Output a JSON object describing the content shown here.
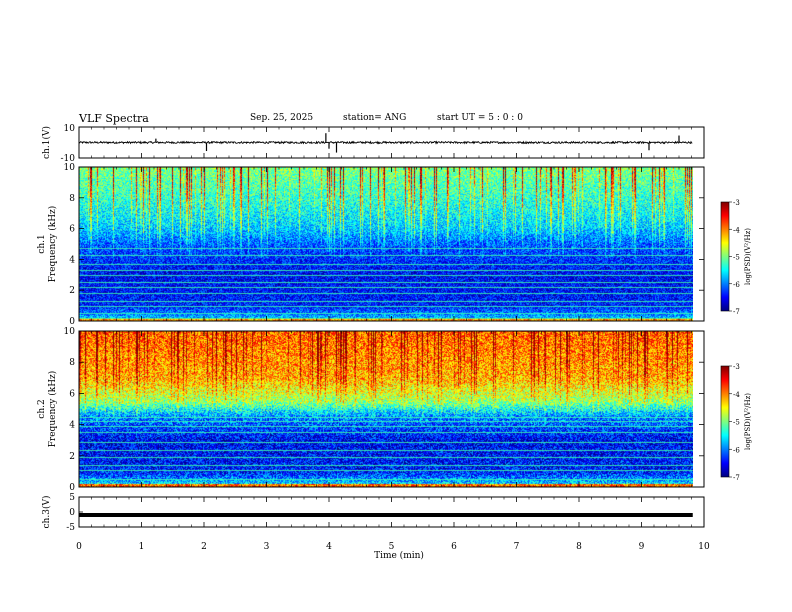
{
  "header": {
    "title": "VLF Spectra",
    "date": "Sep. 25, 2025",
    "station": "station= ANG",
    "start_ut": "start  UT =   5 : 0  : 0"
  },
  "chart_data": [
    {
      "type": "line",
      "name": "ch1-waveform",
      "ylabel": "ch.1(V)",
      "ylim": [
        -10,
        10
      ],
      "yticks": [
        "10",
        "-10"
      ],
      "baseline": 0,
      "spikes": [
        {
          "t": 1.23,
          "v": 2.5
        },
        {
          "t": 2.04,
          "v": -5.5
        },
        {
          "t": 3.95,
          "v": 6.0
        },
        {
          "t": 4.0,
          "v": -4.0
        },
        {
          "t": 4.12,
          "v": -6.5
        },
        {
          "t": 9.12,
          "v": -5.0
        },
        {
          "t": 9.6,
          "v": 4.5
        }
      ]
    },
    {
      "type": "heatmap",
      "name": "ch1-spectrogram",
      "ylabel": "ch.1\nFrequency (kHz)",
      "ylabel_line1": "ch.1",
      "ylabel_line2": "Frequency  (kHz)",
      "ylim": [
        0,
        10
      ],
      "yticks": [
        "0",
        "2",
        "4",
        "6",
        "8",
        "10"
      ],
      "power_profile": [
        {
          "f": 0,
          "p": -5.6
        },
        {
          "f": 1,
          "p": -6.4
        },
        {
          "f": 3,
          "p": -6.5
        },
        {
          "f": 4.8,
          "p": -6.2
        },
        {
          "f": 6,
          "p": -5.7
        },
        {
          "f": 8,
          "p": -5.3
        },
        {
          "f": 10,
          "p": -5.0
        }
      ],
      "noise_lines_khz": [
        0.2,
        0.5,
        1.0,
        1.3,
        1.8,
        2.2,
        2.55,
        3.0,
        3.3,
        3.7,
        4.3,
        4.75
      ],
      "colorbar": {
        "label": "log(PSD)(V²/Hz)",
        "range": [
          -7,
          -3
        ],
        "ticks": [
          "-3",
          "-4",
          "-5",
          "-6",
          "-7"
        ]
      }
    },
    {
      "type": "heatmap",
      "name": "ch2-spectrogram",
      "ylabel": "ch.2\nFrequency (kHz)",
      "ylabel_line1": "ch.2",
      "ylabel_line2": "Frequency  (kHz)",
      "ylim": [
        0,
        10
      ],
      "yticks": [
        "0",
        "2",
        "4",
        "6",
        "8",
        "10"
      ],
      "power_profile": [
        {
          "f": 0,
          "p": -5.4
        },
        {
          "f": 1,
          "p": -6.4
        },
        {
          "f": 3,
          "p": -6.5
        },
        {
          "f": 4.5,
          "p": -6.0
        },
        {
          "f": 5.5,
          "p": -4.9
        },
        {
          "f": 7,
          "p": -4.2
        },
        {
          "f": 10,
          "p": -3.9
        }
      ],
      "noise_lines_khz": [
        0.5,
        1.1,
        1.4,
        1.9,
        2.4,
        2.9,
        3.5,
        3.9,
        4.2,
        4.5
      ],
      "colorbar": {
        "label": "log(PSD)(V²/Hz)",
        "range": [
          -7,
          -3
        ],
        "ticks": [
          "-3",
          "-4",
          "-5",
          "-6",
          "-7"
        ]
      }
    },
    {
      "type": "line",
      "name": "ch3-waveform",
      "ylabel": "ch.3(V)",
      "ylim": [
        -5,
        5
      ],
      "yticks": [
        "5",
        "0",
        "-5"
      ],
      "value": -1
    }
  ],
  "xaxis": {
    "label": "Time  (min)",
    "range": [
      0,
      10
    ],
    "data_end": 9.82,
    "ticks": [
      "0",
      "1",
      "2",
      "3",
      "4",
      "5",
      "6",
      "7",
      "8",
      "9",
      "10"
    ]
  },
  "colors": {
    "colormap": [
      "#00007f",
      "#0000ff",
      "#007fff",
      "#00ffff",
      "#7fff7f",
      "#ffff00",
      "#ff7f00",
      "#ff0000",
      "#7f0000"
    ]
  }
}
